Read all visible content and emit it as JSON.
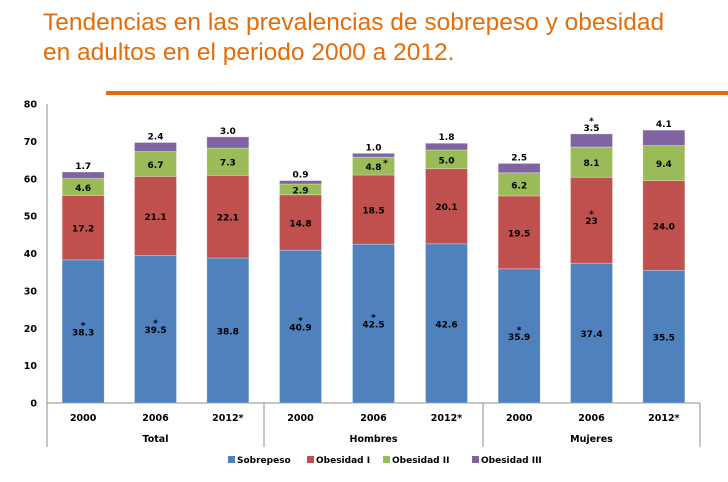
{
  "title": {
    "line1": "Tendencias en las prevalencias de sobrepeso y obesidad",
    "line2": "en adultos en el periodo 2000 a 2012."
  },
  "accent_color": "#E46C0A",
  "chart_data": {
    "type": "bar",
    "stacked": true,
    "title": "Tendencias en las prevalencias de sobrepeso y obesidad en adultos en el periodo 2000 a 2012.",
    "xlabel": "",
    "ylabel": "",
    "ylim": [
      0,
      80
    ],
    "yticks": [
      0,
      10,
      20,
      30,
      40,
      50,
      60,
      70,
      80
    ],
    "grid": false,
    "legend_position": "bottom",
    "groups": [
      {
        "label": "Total",
        "categories": [
          "2000",
          "2006",
          "2012*"
        ]
      },
      {
        "label": "Hombres",
        "categories": [
          "2000",
          "2006",
          "2012*"
        ]
      },
      {
        "label": "Mujeres",
        "categories": [
          "2000",
          "2006",
          "2012*"
        ]
      }
    ],
    "categories": [
      "Total 2000",
      "Total 2006",
      "Total 2012*",
      "Hombres 2000",
      "Hombres 2006",
      "Hombres 2012*",
      "Mujeres 2000",
      "Mujeres 2006",
      "Mujeres 2012*"
    ],
    "series": [
      {
        "name": "Sobrepeso",
        "color": "#4F81BD",
        "values": [
          38.3,
          39.5,
          38.8,
          40.9,
          42.5,
          42.6,
          35.9,
          37.4,
          35.5
        ],
        "labels": [
          "38.3",
          "39.5",
          "38.8",
          "40.9",
          "42.5",
          "42.6",
          "35.9",
          "37.4",
          "35.5"
        ],
        "asterisk": [
          true,
          true,
          false,
          true,
          true,
          false,
          true,
          false,
          false
        ]
      },
      {
        "name": "Obesidad I",
        "color": "#C0504D",
        "values": [
          17.2,
          21.1,
          22.1,
          14.8,
          18.5,
          20.1,
          19.5,
          23.0,
          24.0
        ],
        "labels": [
          "17.2",
          "21.1",
          "22.1",
          "14.8",
          "18.5",
          "20.1",
          "19.5",
          "23",
          "24.0"
        ],
        "asterisk": [
          false,
          false,
          false,
          false,
          false,
          false,
          false,
          true,
          false
        ]
      },
      {
        "name": "Obesidad II",
        "color": "#9BBB59",
        "values": [
          4.6,
          6.7,
          7.3,
          2.9,
          4.8,
          5.0,
          6.2,
          8.1,
          9.4
        ],
        "labels": [
          "4.6",
          "6.7",
          "7.3",
          "2.9",
          "4.8",
          "5.0",
          "6.2",
          "8.1",
          "9.4"
        ],
        "asterisk": [
          false,
          false,
          false,
          false,
          true,
          false,
          false,
          false,
          false
        ]
      },
      {
        "name": "Obesidad III",
        "color": "#8064A2",
        "values": [
          1.7,
          2.4,
          3.0,
          0.9,
          1.0,
          1.8,
          2.5,
          3.5,
          4.1
        ],
        "labels": [
          "1.7",
          "2.4",
          "3.0",
          "0.9",
          "1.0",
          "1.8",
          "2.5",
          "3.5",
          "4.1"
        ],
        "asterisk": [
          false,
          false,
          false,
          false,
          false,
          false,
          false,
          true,
          false
        ]
      }
    ]
  }
}
